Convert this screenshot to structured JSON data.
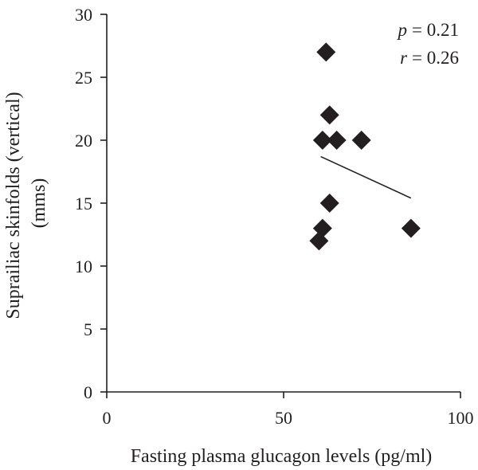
{
  "chart_data": {
    "type": "scatter",
    "xlabel": "Fasting plasma glucagon levels (pg/ml)",
    "ylabel_lines": [
      "Suprailiac skinfolds (vertical)",
      "(mms)"
    ],
    "xlim": [
      0,
      100
    ],
    "ylim": [
      0,
      30
    ],
    "x_ticks": [
      "0",
      "50",
      "100"
    ],
    "y_ticks": [
      "0",
      "5",
      "10",
      "15",
      "20",
      "25",
      "30"
    ],
    "grid": false,
    "points": [
      {
        "x": 62,
        "y": 27
      },
      {
        "x": 63,
        "y": 22
      },
      {
        "x": 61,
        "y": 20
      },
      {
        "x": 65,
        "y": 20
      },
      {
        "x": 72,
        "y": 20
      },
      {
        "x": 63,
        "y": 15
      },
      {
        "x": 61,
        "y": 13
      },
      {
        "x": 60,
        "y": 12
      },
      {
        "x": 86,
        "y": 13
      }
    ],
    "trendline": {
      "x": [
        60.5,
        86
      ],
      "y": [
        18.7,
        15.4
      ]
    },
    "annotations": {
      "p_symbol": "p",
      "p_value": "= 0.21",
      "r_symbol": "r",
      "r_value": "= 0.26"
    }
  }
}
